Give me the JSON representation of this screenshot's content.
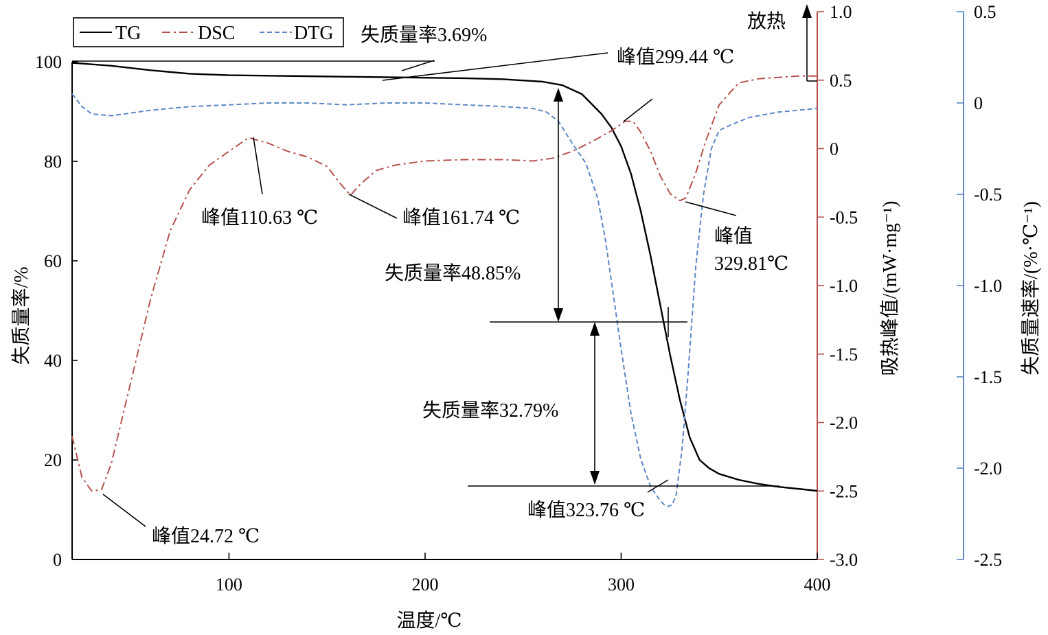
{
  "chart_data": {
    "type": "line",
    "x_axis": {
      "label": "温度/℃",
      "range": [
        20,
        400
      ],
      "ticks": [
        "100",
        "200",
        "300",
        "400"
      ],
      "tick_values": [
        100,
        200,
        300,
        400
      ]
    },
    "y_left": {
      "label": "失质量率/%",
      "range": [
        0,
        100
      ],
      "ticks": [
        "0",
        "20",
        "40",
        "60",
        "80",
        "100"
      ],
      "tick_values": [
        0,
        20,
        40,
        60,
        80,
        100
      ],
      "color": "#000000"
    },
    "y_right1": {
      "label": "吸热峰值/(mW·mg⁻¹)",
      "range": [
        -3.0,
        1.0
      ],
      "ticks": [
        "-3.0",
        "-2.5",
        "-2.0",
        "-1.5",
        "-1.0",
        "-0.5",
        "0",
        "0.5",
        "1.0"
      ],
      "tick_values": [
        -3.0,
        -2.5,
        -2.0,
        -1.5,
        -1.0,
        -0.5,
        0,
        0.5,
        1.0
      ],
      "color": "#b5514d"
    },
    "y_right2": {
      "label": "失质量速率/(%·℃⁻¹)",
      "range": [
        -2.5,
        0.5
      ],
      "ticks": [
        "-2.5",
        "-2.0",
        "-1.5",
        "-1.0",
        "-0.5",
        "0",
        "0.5"
      ],
      "tick_values": [
        -2.5,
        -2.0,
        -1.5,
        -1.0,
        -0.5,
        0,
        0.5
      ],
      "color": "#5b87c5"
    },
    "legend": {
      "position": "top-left",
      "entries": [
        "TG",
        "DSC",
        "DTG"
      ]
    },
    "exo_label": "放热",
    "series": [
      {
        "name": "TG",
        "axis": "left",
        "color": "#000000",
        "style": "solid",
        "x": [
          20,
          40,
          60,
          80,
          100,
          120,
          140,
          160,
          180,
          200,
          220,
          240,
          260,
          270,
          280,
          290,
          295,
          300,
          305,
          310,
          315,
          320,
          325,
          330,
          335,
          340,
          345,
          350,
          360,
          370,
          380,
          390,
          400
        ],
        "y": [
          99.8,
          99.2,
          98.3,
          97.6,
          97.3,
          97.2,
          97.1,
          97.0,
          96.9,
          96.8,
          96.7,
          96.5,
          96.0,
          95.3,
          93.5,
          89.5,
          86.8,
          83.0,
          77.5,
          70.0,
          61.0,
          51.0,
          41.0,
          32.0,
          24.5,
          20.0,
          18.3,
          17.2,
          16.0,
          15.2,
          14.6,
          14.2,
          13.8
        ]
      },
      {
        "name": "DSC",
        "axis": "right1",
        "color": "#b5514d",
        "style": "dashdot",
        "x": [
          20,
          25,
          30,
          35,
          40,
          45,
          50,
          55,
          60,
          70,
          80,
          90,
          100,
          110,
          120,
          130,
          140,
          150,
          157,
          162,
          167,
          175,
          185,
          200,
          220,
          240,
          255,
          265,
          275,
          285,
          295,
          302,
          306,
          310,
          315,
          320,
          325,
          330,
          333,
          338,
          343,
          350,
          360,
          370,
          380,
          390,
          400
        ],
        "y": [
          -2.1,
          -2.4,
          -2.5,
          -2.49,
          -2.3,
          -2.0,
          -1.7,
          -1.4,
          -1.1,
          -0.6,
          -0.3,
          -0.12,
          -0.02,
          0.08,
          0.04,
          -0.02,
          -0.06,
          -0.13,
          -0.26,
          -0.34,
          -0.26,
          -0.16,
          -0.12,
          -0.09,
          -0.08,
          -0.08,
          -0.09,
          -0.07,
          -0.02,
          0.05,
          0.13,
          0.2,
          0.2,
          0.12,
          -0.02,
          -0.2,
          -0.33,
          -0.38,
          -0.36,
          -0.18,
          0.05,
          0.32,
          0.48,
          0.51,
          0.52,
          0.53,
          0.53
        ]
      },
      {
        "name": "DTG",
        "axis": "right2",
        "color": "#5b87c5",
        "style": "dashed",
        "x": [
          20,
          25,
          30,
          40,
          60,
          80,
          100,
          120,
          140,
          160,
          180,
          200,
          220,
          240,
          255,
          262,
          268,
          275,
          282,
          288,
          292,
          296,
          300,
          305,
          310,
          315,
          320,
          322,
          324,
          326,
          328,
          331,
          334,
          338,
          342,
          346,
          350,
          356,
          365,
          380,
          390,
          400
        ],
        "y": [
          0.05,
          -0.02,
          -0.06,
          -0.07,
          -0.04,
          -0.02,
          -0.01,
          0.0,
          0.0,
          -0.01,
          0.0,
          0.0,
          -0.01,
          -0.02,
          -0.03,
          -0.05,
          -0.1,
          -0.22,
          -0.33,
          -0.52,
          -0.75,
          -1.05,
          -1.35,
          -1.7,
          -1.95,
          -2.1,
          -2.18,
          -2.2,
          -2.21,
          -2.2,
          -2.15,
          -1.9,
          -1.5,
          -0.9,
          -0.5,
          -0.25,
          -0.15,
          -0.12,
          -0.08,
          -0.05,
          -0.04,
          -0.03
        ]
      }
    ],
    "annotations": [
      {
        "text": "失质量率3.69%"
      },
      {
        "text": "峰值299.44 ℃"
      },
      {
        "text": "峰值110.63 ℃"
      },
      {
        "text": "峰值161.74 ℃"
      },
      {
        "text": "峰值"
      },
      {
        "text": "329.81℃"
      },
      {
        "text": "失质量率48.85%"
      },
      {
        "text": "失质量率32.79%"
      },
      {
        "text": "峰值323.76 ℃"
      },
      {
        "text": "峰值24.72 ℃"
      }
    ]
  }
}
